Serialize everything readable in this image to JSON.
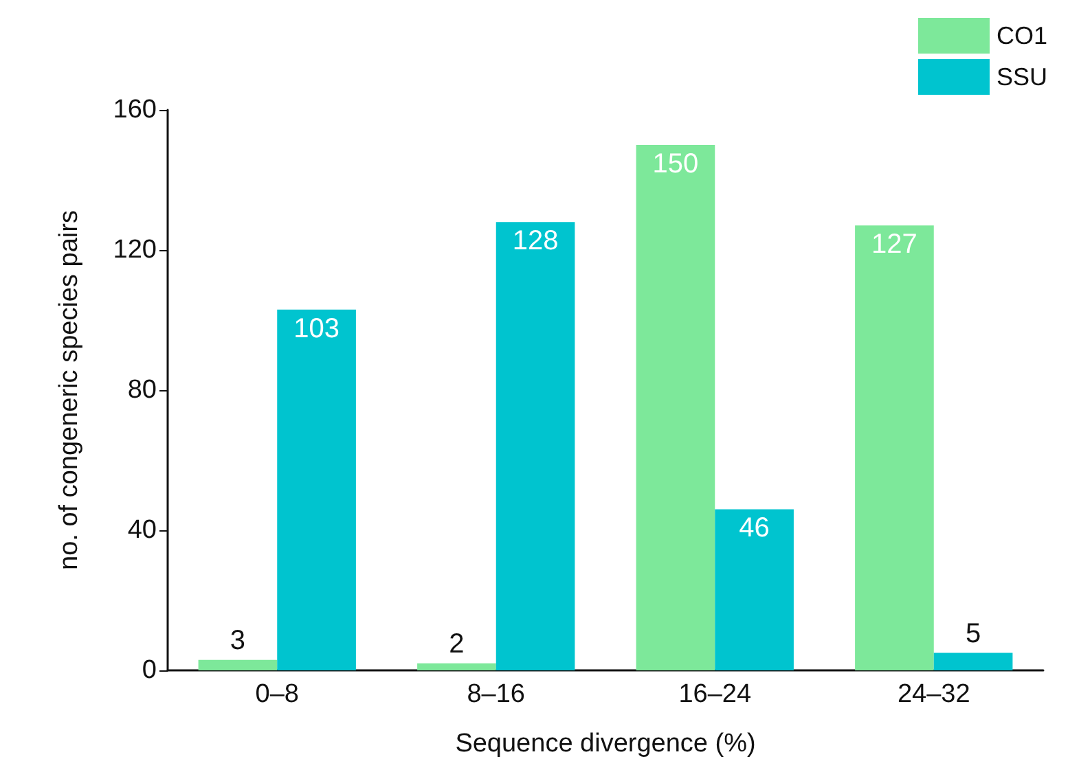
{
  "chart_data": {
    "type": "bar",
    "xlabel": "Sequence divergence (%)",
    "ylabel": "no. of congeneric species pairs",
    "categories": [
      "0–8",
      "8–16",
      "16–24",
      "24–32"
    ],
    "series": [
      {
        "name": "CO1",
        "color": "#7de89a",
        "values": [
          3,
          2,
          150,
          127
        ]
      },
      {
        "name": "SSU",
        "color": "#00c4cf",
        "values": [
          103,
          128,
          46,
          5
        ]
      }
    ],
    "ylim": [
      0,
      160
    ],
    "yticks": [
      0,
      40,
      80,
      120,
      160
    ],
    "grid": false,
    "legend": "top right",
    "data_labels": true
  }
}
